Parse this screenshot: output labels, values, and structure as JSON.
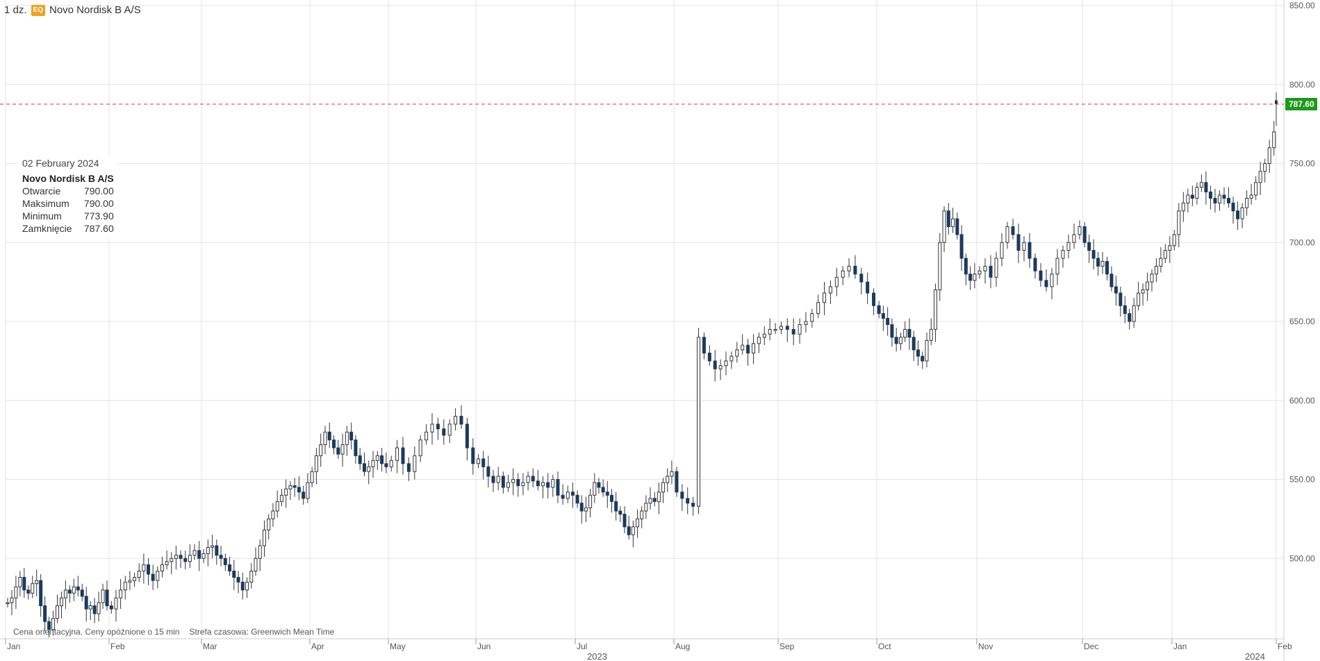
{
  "header": {
    "interval": "1 dz.",
    "badge": "EQ",
    "instrument": "Novo Nordisk B A/S"
  },
  "tooltip": {
    "date": "02 February 2024",
    "name": "Novo Nordisk B A/S",
    "open_label": "Otwarcie",
    "open_value": "790.00",
    "high_label": "Maksimum",
    "high_value": "790.00",
    "low_label": "Minimum",
    "low_value": "773.90",
    "close_label": "Zamknięcie",
    "close_value": "787.60"
  },
  "footer": {
    "note": "Cena orientacyjna. Ceny opóźnione o 15 min",
    "timezone": "Strefa czasowa: Greenwich Mean Time"
  },
  "colors": {
    "up_fill": "#ffffff",
    "up_stroke": "#333333",
    "down_fill": "#1c3a5e",
    "last_price_line": "#e03030",
    "last_price_tag": "#1a9a1a",
    "grid": "#e3e3e3"
  },
  "chart_data": {
    "type": "candlestick",
    "title": "Novo Nordisk B A/S",
    "interval": "1 dz.",
    "ylim": [
      450,
      850
    ],
    "y_ticks": [
      "500.00",
      "550.00",
      "600.00",
      "650.00",
      "700.00",
      "750.00",
      "800.00",
      "850.00"
    ],
    "x_ticks": [
      "Jan",
      "Feb",
      "Mar",
      "Apr",
      "May",
      "Jun",
      "Jul",
      "Aug",
      "Sep",
      "Oct",
      "Nov",
      "Dec",
      "Jan",
      "Feb"
    ],
    "year_labels": [
      "2023",
      "2024"
    ],
    "last_price": "787.60",
    "grid": true,
    "series": [
      {
        "month": "Jan 2023",
        "closes": [
          472,
          475,
          482,
          488,
          480,
          478,
          484,
          486,
          470,
          460,
          455,
          462,
          470,
          475,
          480,
          478,
          482,
          480,
          476,
          468,
          470,
          465,
          472,
          480,
          470
        ]
      },
      {
        "month": "Feb 2023",
        "closes": [
          468,
          475,
          480,
          485,
          486,
          488,
          492,
          496,
          490,
          486,
          492,
          496,
          498,
          500,
          502,
          500,
          498,
          502,
          505,
          500
        ]
      },
      {
        "month": "Mar 2023",
        "closes": [
          503,
          507,
          508,
          502,
          500,
          496,
          492,
          488,
          485,
          480,
          485,
          492,
          500,
          508,
          518,
          525,
          530,
          536,
          540,
          544,
          546,
          545,
          542,
          538,
          548
        ]
      },
      {
        "month": "Apr 2023",
        "closes": [
          555,
          565,
          572,
          580,
          575,
          570,
          566,
          572,
          580,
          575,
          565,
          560,
          555,
          558,
          562,
          565,
          560,
          558
        ]
      },
      {
        "month": "May 2023",
        "closes": [
          562,
          570,
          560,
          555,
          565,
          575,
          580,
          585,
          582,
          578,
          585,
          590,
          585,
          570,
          560
        ]
      },
      {
        "month": "Jun 2023",
        "closes": [
          563,
          558,
          552,
          548,
          552,
          545,
          548,
          550,
          546,
          548,
          552,
          549,
          546,
          548,
          545,
          550,
          540,
          538,
          542,
          540
        ]
      },
      {
        "month": "Jul 2023",
        "closes": [
          535,
          530,
          532,
          540,
          548,
          545,
          542,
          540,
          536,
          530,
          528,
          520,
          515,
          520,
          525,
          530,
          535,
          538,
          536,
          542,
          548,
          552,
          555
        ]
      },
      {
        "month": "Aug 2023",
        "closes": [
          542,
          538,
          535,
          533,
          640,
          630,
          625,
          620,
          622,
          625,
          628,
          632,
          635,
          630,
          636,
          640,
          642,
          645,
          645
        ]
      },
      {
        "month": "Sep 2023",
        "closes": [
          647,
          645,
          642,
          648,
          650,
          655,
          662,
          668,
          672,
          678,
          682,
          685,
          680,
          675,
          668,
          660
        ]
      },
      {
        "month": "Oct 2023",
        "closes": [
          655,
          652,
          648,
          640,
          636,
          640,
          645,
          640,
          632,
          628,
          625,
          638,
          645,
          670,
          700,
          720,
          710,
          715,
          705,
          690,
          680,
          676,
          680
        ]
      },
      {
        "month": "Nov 2023",
        "closes": [
          682,
          685,
          678,
          690,
          700,
          710,
          705,
          695,
          700,
          690,
          682,
          676,
          672,
          680,
          690,
          695,
          700,
          705,
          710
        ]
      },
      {
        "month": "Dec 2023",
        "closes": [
          700,
          695,
          690,
          685,
          688,
          680,
          672,
          668,
          660,
          655,
          650,
          660,
          668,
          670,
          675,
          680,
          685,
          690,
          695,
          698
        ]
      },
      {
        "month": "Jan 2024",
        "closes": [
          705,
          720,
          725,
          730,
          728,
          735,
          738,
          732,
          728,
          725,
          730,
          728,
          725,
          720,
          715,
          722,
          728,
          730,
          738,
          745,
          750,
          760,
          770
        ]
      },
      {
        "month": "Feb 2024",
        "ohlc": [
          [
            790.0,
            790.0,
            773.9,
            787.6
          ]
        ]
      }
    ]
  }
}
